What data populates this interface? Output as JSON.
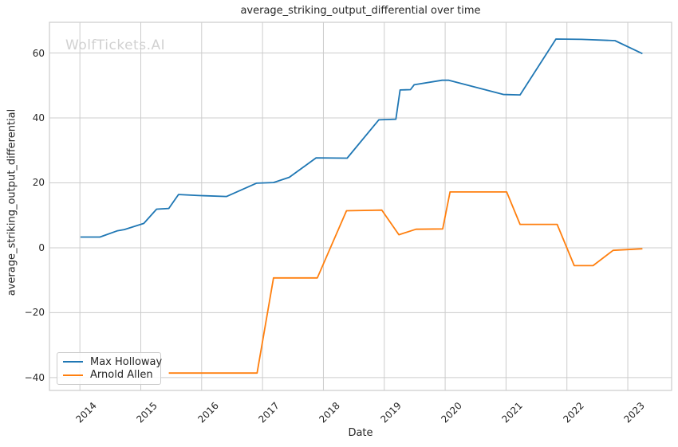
{
  "chart_data": {
    "type": "line",
    "title": "average_striking_output_differential over time",
    "xlabel": "Date",
    "ylabel": "average_striking_output_differential",
    "watermark": "WolfTickets.AI",
    "grid": true,
    "legend_position": "lower left",
    "xlim": [
      2013.5,
      2023.72
    ],
    "ylim": [
      -43.95,
      69.45
    ],
    "x_ticks": [
      2014,
      2015,
      2016,
      2017,
      2018,
      2019,
      2020,
      2021,
      2022,
      2023
    ],
    "x_tick_labels": [
      "2014",
      "2015",
      "2016",
      "2017",
      "2018",
      "2019",
      "2020",
      "2021",
      "2022",
      "2023"
    ],
    "y_ticks": [
      -40,
      -20,
      0,
      20,
      40,
      60
    ],
    "y_tick_labels": [
      "−40",
      "−20",
      "0",
      "20",
      "40",
      "60"
    ],
    "series": [
      {
        "name": "Max Holloway",
        "color": "#1f77b4",
        "points": [
          [
            2014.01,
            3.3
          ],
          [
            2014.33,
            3.3
          ],
          [
            2014.61,
            5.2
          ],
          [
            2014.73,
            5.6
          ],
          [
            2015.05,
            7.5
          ],
          [
            2015.26,
            11.9
          ],
          [
            2015.46,
            12.1
          ],
          [
            2015.62,
            16.4
          ],
          [
            2015.95,
            16.1
          ],
          [
            2016.41,
            15.8
          ],
          [
            2016.9,
            19.9
          ],
          [
            2017.18,
            20.1
          ],
          [
            2017.44,
            21.7
          ],
          [
            2017.88,
            27.7
          ],
          [
            2018.39,
            27.6
          ],
          [
            2018.91,
            39.4
          ],
          [
            2019.19,
            39.6
          ],
          [
            2019.26,
            48.6
          ],
          [
            2019.43,
            48.7
          ],
          [
            2019.49,
            50.2
          ],
          [
            2019.95,
            51.6
          ],
          [
            2020.06,
            51.6
          ],
          [
            2020.96,
            47.2
          ],
          [
            2021.23,
            47.1
          ],
          [
            2021.82,
            64.3
          ],
          [
            2022.24,
            64.2
          ],
          [
            2022.79,
            63.8
          ],
          [
            2023.24,
            59.8
          ]
        ]
      },
      {
        "name": "Arnold Allen",
        "color": "#ff7f0e",
        "points": [
          [
            2015.46,
            -38.6
          ],
          [
            2016.91,
            -38.6
          ],
          [
            2017.18,
            -9.3
          ],
          [
            2017.9,
            -9.3
          ],
          [
            2018.38,
            11.4
          ],
          [
            2018.96,
            11.6
          ],
          [
            2019.24,
            4.0
          ],
          [
            2019.52,
            5.7
          ],
          [
            2019.96,
            5.8
          ],
          [
            2020.08,
            17.2
          ],
          [
            2021.01,
            17.2
          ],
          [
            2021.23,
            7.2
          ],
          [
            2021.84,
            7.2
          ],
          [
            2022.12,
            -5.5
          ],
          [
            2022.43,
            -5.5
          ],
          [
            2022.76,
            -0.8
          ],
          [
            2023.24,
            -0.3
          ]
        ]
      }
    ]
  }
}
